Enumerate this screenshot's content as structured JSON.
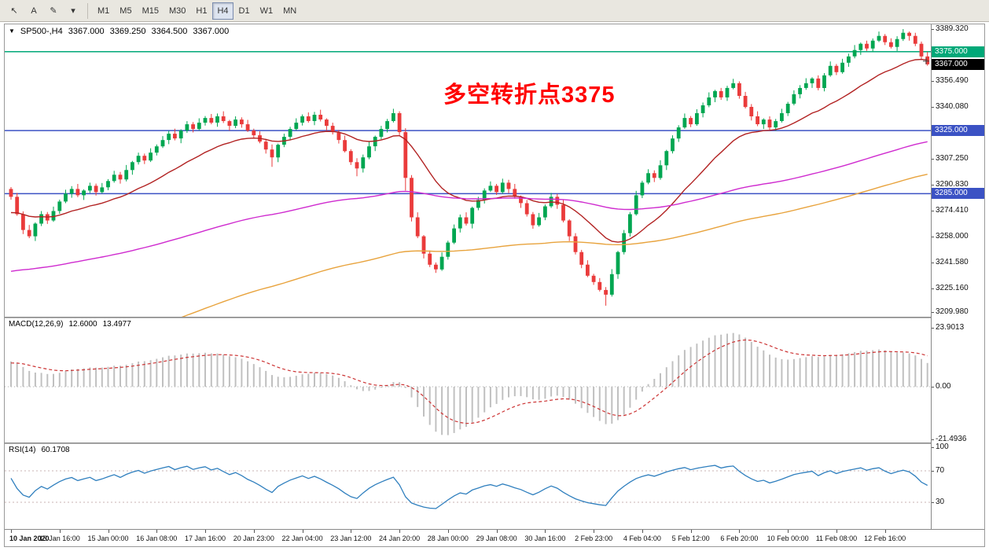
{
  "toolbar": {
    "tools": [
      {
        "name": "cursor",
        "glyph": "↖"
      },
      {
        "name": "text-label",
        "glyph": "A"
      },
      {
        "name": "draw",
        "glyph": "✎"
      },
      {
        "name": "shapes-dropdown",
        "glyph": "▾"
      }
    ],
    "timeframes": [
      "M1",
      "M5",
      "M15",
      "M30",
      "H1",
      "H4",
      "D1",
      "W1",
      "MN"
    ],
    "active_timeframe": "H4"
  },
  "chart": {
    "header": {
      "expander_icon": "▼",
      "symbol_period": "SP500-,H4",
      "open": "3367.000",
      "high": "3369.250",
      "low": "3364.500",
      "close": "3367.000"
    },
    "annotation": {
      "text": "多空转折点3375",
      "color": "#ff0000"
    },
    "price_axis": {
      "min": 3209.98,
      "max": 3389.32,
      "labels": [
        "3389.320",
        "3372.910",
        "3356.490",
        "3340.080",
        "3323.660",
        "3307.250",
        "3290.830",
        "3274.410",
        "3258.000",
        "3241.580",
        "3225.160",
        "3209.980"
      ],
      "badges": [
        {
          "text": "3375.000",
          "price": 3375.0,
          "color": "#00a878"
        },
        {
          "text": "3367.000",
          "price": 3367.0,
          "color": "#000000"
        },
        {
          "text": "3325.000",
          "price": 3325.0,
          "color": "#3b52c4"
        },
        {
          "text": "3285.000",
          "price": 3285.0,
          "color": "#3b52c4"
        }
      ]
    },
    "hlines": [
      {
        "price": 3375.0,
        "color": "#00a878"
      },
      {
        "price": 3325.0,
        "color": "#3b52c4"
      },
      {
        "price": 3285.0,
        "color": "#3b52c4"
      }
    ]
  },
  "chart_data": {
    "type": "candlestick",
    "symbol": "SP500-",
    "timeframe": "H4",
    "colors": {
      "up": "#00a651",
      "down": "#ea3b3b",
      "macd_hist": "#c0c0c0",
      "macd_signal": "#cc3333",
      "rsi_line": "#2f7fbe"
    },
    "x_labels": [
      "10 Jan 2020",
      "13 Jan 16:00",
      "15 Jan 00:00",
      "16 Jan 08:00",
      "17 Jan 16:00",
      "20 Jan 23:00",
      "22 Jan 04:00",
      "23 Jan 12:00",
      "24 Jan 20:00",
      "28 Jan 00:00",
      "29 Jan 08:00",
      "30 Jan 16:00",
      "2 Feb 23:00",
      "4 Feb 04:00",
      "5 Feb 12:00",
      "6 Feb 20:00",
      "10 Feb 00:00",
      "11 Feb 08:00",
      "12 Feb 16:00"
    ],
    "bars_per_label": 8,
    "candles": {
      "first_open": 3288,
      "closes": [
        3283,
        3272,
        3262,
        3258,
        3266,
        3272,
        3268,
        3274,
        3280,
        3285,
        3288,
        3284,
        3287,
        3290,
        3286,
        3289,
        3293,
        3297,
        3294,
        3300,
        3305,
        3309,
        3306,
        3311,
        3315,
        3319,
        3323,
        3320,
        3325,
        3329,
        3326,
        3330,
        3333,
        3330,
        3334,
        3331,
        3328,
        3332,
        3329,
        3325,
        3322,
        3318,
        3313,
        3308,
        3316,
        3321,
        3326,
        3330,
        3334,
        3331,
        3335,
        3332,
        3328,
        3324,
        3319,
        3312,
        3305,
        3301,
        3308,
        3315,
        3321,
        3326,
        3331,
        3336,
        3324,
        3295,
        3270,
        3258,
        3247,
        3240,
        3237,
        3245,
        3254,
        3263,
        3270,
        3266,
        3276,
        3281,
        3287,
        3290,
        3286,
        3292,
        3288,
        3283,
        3279,
        3272,
        3265,
        3270,
        3277,
        3283,
        3278,
        3268,
        3258,
        3248,
        3240,
        3233,
        3229,
        3224,
        3221,
        3234,
        3248,
        3260,
        3272,
        3284,
        3292,
        3298,
        3295,
        3303,
        3312,
        3320,
        3327,
        3333,
        3329,
        3336,
        3341,
        3346,
        3350,
        3346,
        3352,
        3355,
        3347,
        3340,
        3334,
        3329,
        3332,
        3327,
        3331,
        3336,
        3342,
        3348,
        3352,
        3355,
        3358,
        3352,
        3360,
        3366,
        3362,
        3368,
        3372,
        3376,
        3380,
        3377,
        3382,
        3385,
        3381,
        3378,
        3383,
        3387,
        3385,
        3380,
        3372,
        3367
      ],
      "wick_up": [
        1.2,
        2.5,
        1.8,
        3.2,
        0.8,
        2.0,
        1.4,
        2.8
      ],
      "wick_dn": [
        1.8,
        1.0,
        2.6,
        1.2,
        3.0,
        1.5,
        2.2,
        0.9
      ],
      "wick_overrides": {
        "43": {
          "dn": 6
        },
        "57": {
          "dn": 5
        },
        "65": {
          "dn": 8
        },
        "98": {
          "dn": 7
        },
        "147": {
          "up": 2.3
        }
      }
    },
    "moving_averages": [
      {
        "name": "ma-fast-darkred",
        "color": "#b22222",
        "alpha": 0.09,
        "seed": 3272
      },
      {
        "name": "ma-mid-magenta",
        "color": "#cf2bcf",
        "alpha": 0.016,
        "seed": 3235
      },
      {
        "name": "ma-slow-orange",
        "color": "#e8a33d",
        "alpha": 0.012,
        "seed": 3170
      }
    ],
    "macd": {
      "label": "MACD(12,26,9)",
      "value": "12.6000",
      "signal_value": "13.4977",
      "fast": 12,
      "slow": 26,
      "signal_period": 9,
      "seeds": {
        "ema_fast": 3270,
        "ema_slow": 3260,
        "signal": 9.5
      },
      "axis_labels": [
        {
          "value": 23.9013,
          "text": "23.9013"
        },
        {
          "value": 0,
          "text": "0.00"
        },
        {
          "value": -21.4936,
          "text": "-21.4936"
        }
      ]
    },
    "rsi": {
      "label": "RSI(14)",
      "value": "60.1708",
      "period": 14,
      "levels": [
        70,
        30
      ],
      "seed_gain": 2.0,
      "seed_loss": 1.3,
      "axis_labels": [
        {
          "value": 100,
          "text": "100"
        },
        {
          "value": 70,
          "text": "70"
        },
        {
          "value": 30,
          "text": "30"
        }
      ]
    }
  }
}
